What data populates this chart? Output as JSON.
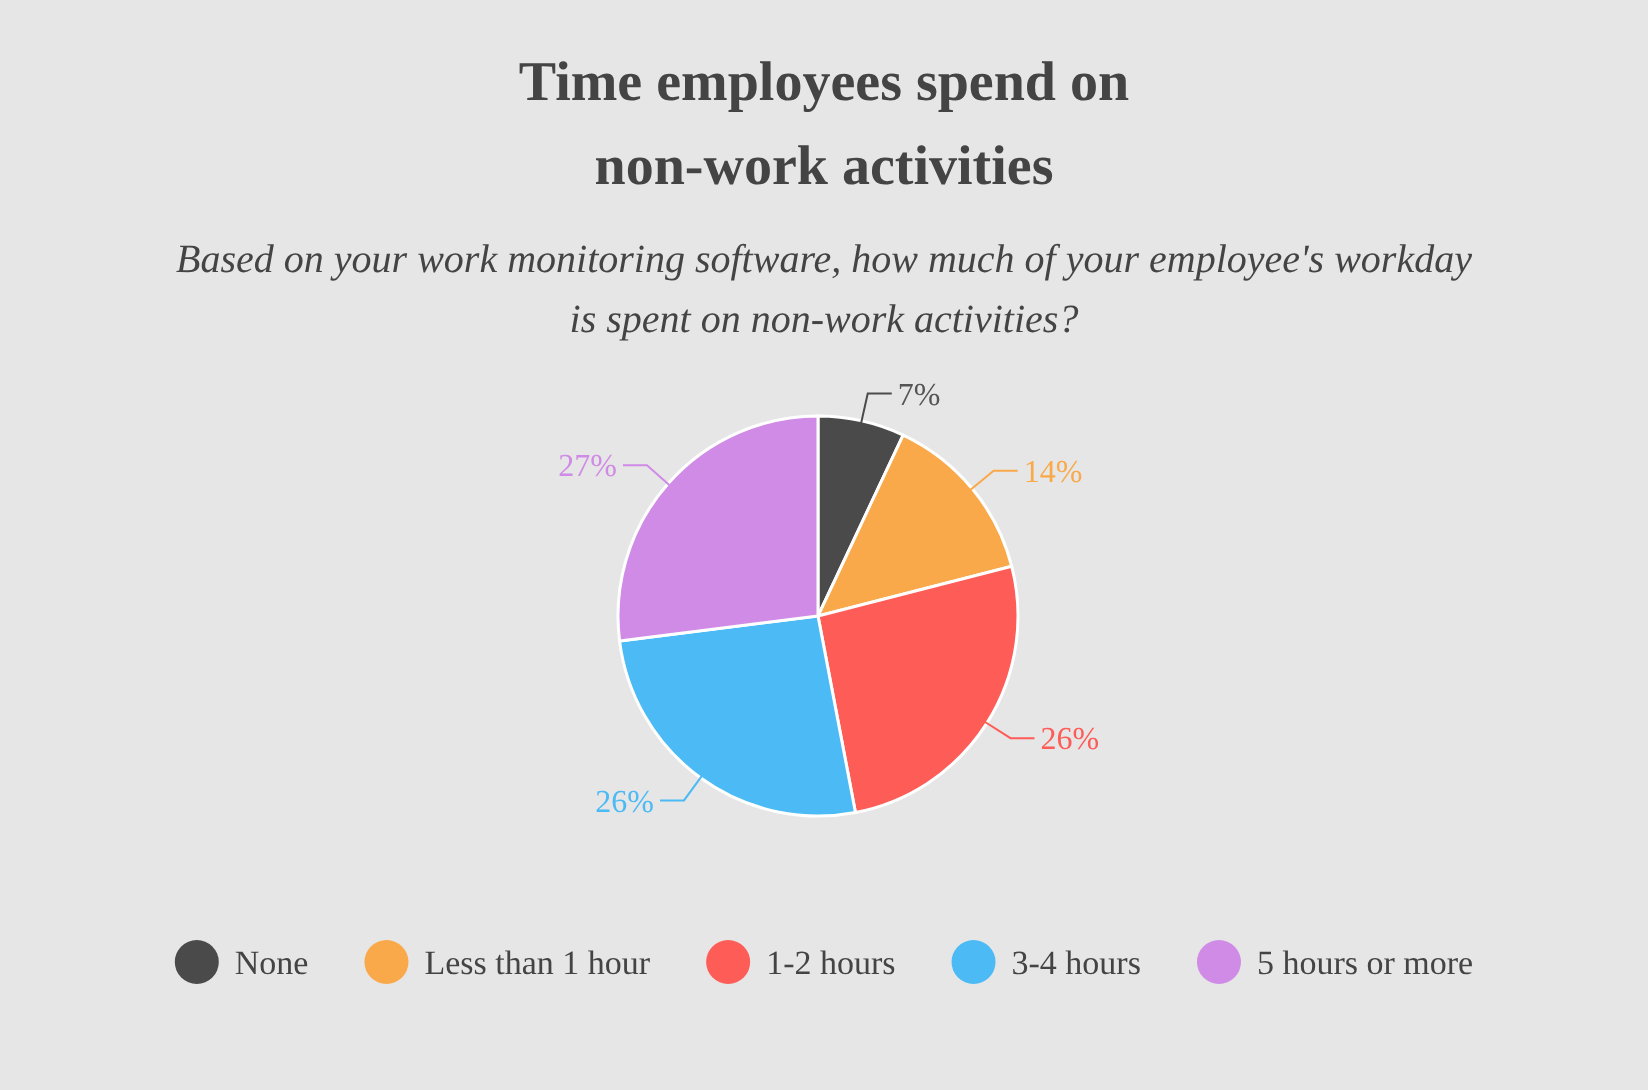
{
  "chart_data": {
    "type": "pie",
    "title": "Time employees spend on\nnon-work activities",
    "subtitle": "Based on your work monitoring software, how much of your employee's workday\nis spent on non-work activities?",
    "categories": [
      "None",
      "Less than 1 hour",
      "1-2 hours",
      "3-4 hours",
      "5 hours or more"
    ],
    "values": [
      7,
      14,
      26,
      26,
      27
    ],
    "value_labels": [
      "7%",
      "14%",
      "26%",
      "26%",
      "27%"
    ],
    "colors": [
      "#4a4a4a",
      "#f9a94a",
      "#fd5c57",
      "#4bbaf5",
      "#d08be6"
    ],
    "legend": "bottom"
  }
}
